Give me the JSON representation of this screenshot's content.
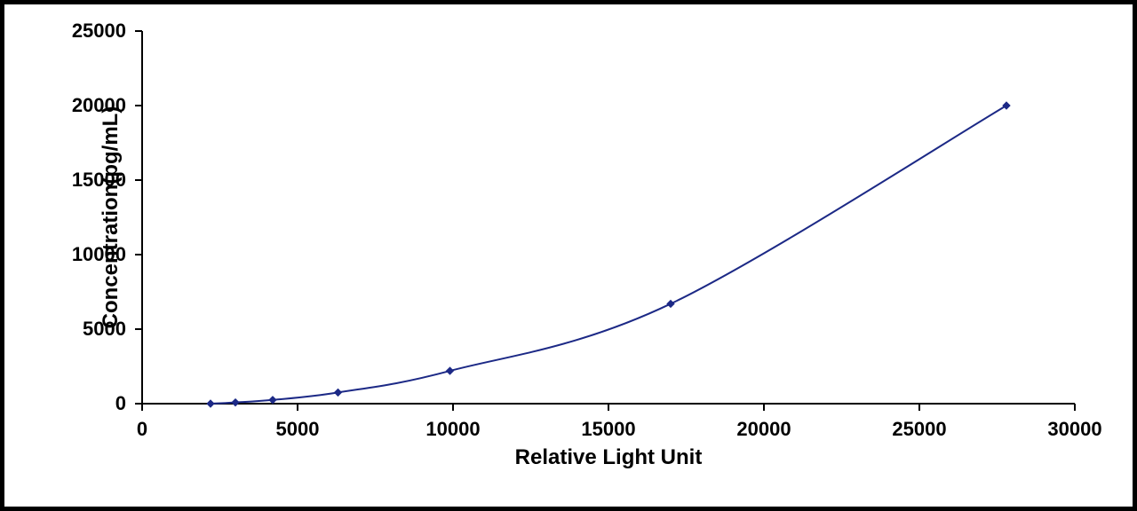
{
  "chart": {
    "type": "scatter-line",
    "x_label": "Relative Light Unit",
    "y_label": "Concentration(pg/mL)",
    "xlim": [
      0,
      30000
    ],
    "ylim": [
      0,
      25000
    ],
    "x_ticks": [
      0,
      5000,
      10000,
      15000,
      20000,
      25000,
      30000
    ],
    "y_ticks": [
      0,
      5000,
      10000,
      15000,
      20000,
      25000
    ],
    "points": [
      {
        "x": 2200,
        "y": 0
      },
      {
        "x": 3000,
        "y": 80
      },
      {
        "x": 4200,
        "y": 250
      },
      {
        "x": 6300,
        "y": 750
      },
      {
        "x": 9900,
        "y": 2200
      },
      {
        "x": 17000,
        "y": 6700
      },
      {
        "x": 27800,
        "y": 20000
      }
    ],
    "line_color": "#1c2986",
    "marker_color": "#1c2986",
    "marker_size": 8,
    "line_width": 2,
    "background_color": "#ffffff",
    "axis_color": "#000000",
    "tick_fontsize": 22,
    "label_fontsize": 24,
    "font_weight": "bold"
  }
}
